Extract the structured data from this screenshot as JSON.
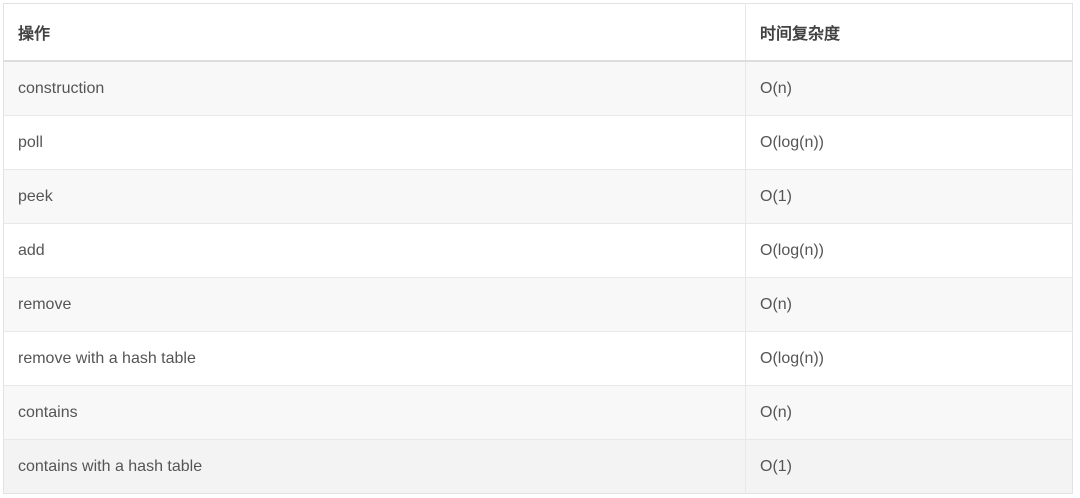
{
  "table": {
    "columns": [
      {
        "label": "操作"
      },
      {
        "label": "时间复杂度"
      }
    ],
    "rows": [
      {
        "operation": "construction",
        "complexity": "O(n)",
        "hovered": false
      },
      {
        "operation": "poll",
        "complexity": "O(log(n))",
        "hovered": false
      },
      {
        "operation": "peek",
        "complexity": "O(1)",
        "hovered": false
      },
      {
        "operation": "add",
        "complexity": "O(log(n))",
        "hovered": false
      },
      {
        "operation": "remove",
        "complexity": "O(n)",
        "hovered": false
      },
      {
        "operation": "remove with a hash table",
        "complexity": "O(log(n))",
        "hovered": false
      },
      {
        "operation": "contains",
        "complexity": "O(n)",
        "hovered": false
      },
      {
        "operation": "contains with a hash table",
        "complexity": "O(1)",
        "hovered": true
      }
    ]
  },
  "colors": {
    "background": "#ffffff",
    "outer_border": "#e2e2e2",
    "header_bottom_border": "#dddddd",
    "row_divider": "#e8e8e8",
    "stripe_row_bg": "#f8f8f9",
    "hovered_row_bg": "#f3f3f4",
    "header_text": "#424242",
    "cell_text": "#555555"
  }
}
